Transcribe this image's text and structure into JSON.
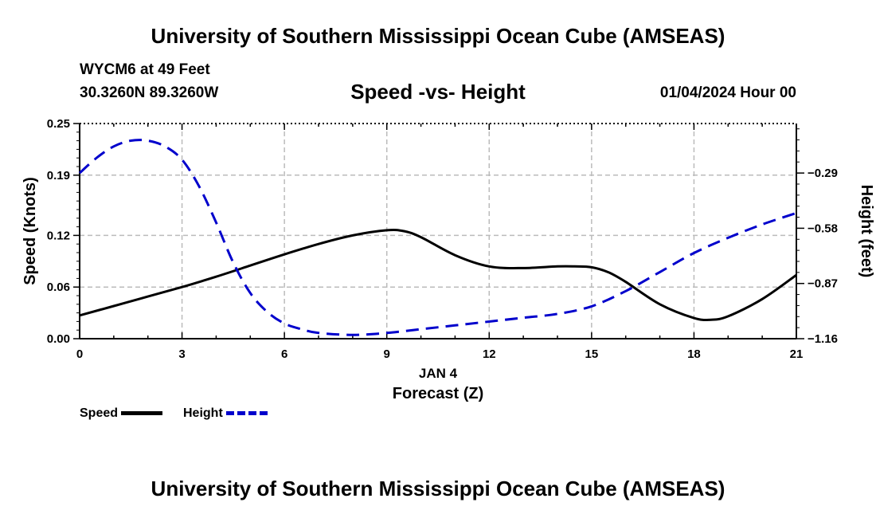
{
  "header": {
    "title": "University of Southern Mississippi Ocean Cube (AMSEAS)",
    "station": "WYCM6 at 49 Feet",
    "coordinates": "30.3260N  89.3260W",
    "chart_title": "Speed -vs- Height",
    "date": "01/04/2024 Hour 00"
  },
  "footer": {
    "title": "University of Southern Mississippi Ocean Cube (AMSEAS)"
  },
  "legend": {
    "speed_label": "Speed",
    "height_label": "Height"
  },
  "colors": {
    "speed": "#000000",
    "height": "#0000cc",
    "grid": "#bbbbbb"
  },
  "chart_data": {
    "type": "line",
    "title": "Speed -vs- Height",
    "xlabel": "Forecast (Z)",
    "xsublabel": "JAN 4",
    "ylabel": "Speed (Knots)",
    "y2label": "Height (feet)",
    "xlim": [
      0,
      21
    ],
    "ylim": [
      0,
      0.25
    ],
    "y2lim": [
      -1.16,
      -0.03
    ],
    "xticks": [
      0,
      3,
      6,
      9,
      12,
      15,
      18,
      21
    ],
    "xticklabels": [
      "0",
      "3",
      "6",
      "9",
      "12",
      "15",
      "18",
      "21"
    ],
    "yticks": [
      0.0,
      0.06,
      0.12,
      0.19,
      0.25
    ],
    "yticklabels": [
      "0.00",
      "0.06",
      "0.12",
      "0.19",
      "0.25"
    ],
    "y2ticks": [
      -1.16,
      -0.87,
      -0.58,
      -0.29
    ],
    "y2ticklabels": [
      "−1.16",
      "−0.87",
      "−0.58",
      "−0.29"
    ],
    "grid": true,
    "legend_position": "bottom-left",
    "series": [
      {
        "name": "Speed",
        "axis": "left",
        "style": "solid",
        "x": [
          0,
          1,
          2,
          3,
          4,
          5,
          6,
          7,
          8,
          9,
          9.5,
          10,
          11,
          12,
          13,
          14,
          14.5,
          15,
          15.5,
          16,
          17,
          18,
          18.5,
          19,
          20,
          21
        ],
        "values": [
          0.027,
          0.038,
          0.049,
          0.06,
          0.072,
          0.085,
          0.098,
          0.11,
          0.12,
          0.126,
          0.125,
          0.118,
          0.097,
          0.084,
          0.082,
          0.084,
          0.084,
          0.083,
          0.077,
          0.066,
          0.04,
          0.024,
          0.022,
          0.026,
          0.046,
          0.074
        ]
      },
      {
        "name": "Height",
        "axis": "right",
        "style": "dashed",
        "x": [
          0,
          0.5,
          1,
          1.5,
          2,
          2.5,
          3,
          3.5,
          4,
          4.5,
          5,
          5.5,
          6,
          6.5,
          7,
          8,
          9,
          10,
          11,
          12,
          13,
          14,
          15,
          16,
          17,
          18,
          19,
          20,
          21
        ],
        "values": [
          -0.29,
          -0.21,
          -0.15,
          -0.12,
          -0.12,
          -0.15,
          -0.22,
          -0.36,
          -0.55,
          -0.76,
          -0.92,
          -1.02,
          -1.08,
          -1.11,
          -1.13,
          -1.14,
          -1.13,
          -1.11,
          -1.09,
          -1.07,
          -1.05,
          -1.03,
          -0.99,
          -0.91,
          -0.81,
          -0.71,
          -0.63,
          -0.56,
          -0.5
        ]
      }
    ]
  }
}
